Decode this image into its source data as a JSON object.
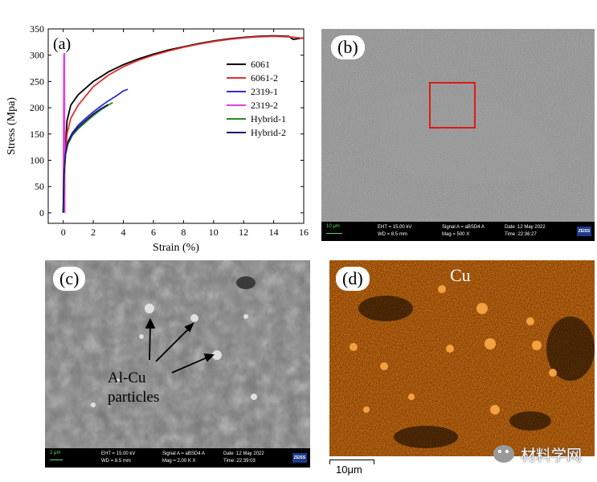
{
  "panel_a": {
    "label": "(a)",
    "chart_data": {
      "type": "line",
      "xlabel": "Strain (%)",
      "ylabel": "Stress (Mpa)",
      "xlim": [
        -1,
        16
      ],
      "ylim": [
        -20,
        350
      ],
      "xticks": [
        0,
        2,
        4,
        6,
        8,
        10,
        12,
        14,
        16
      ],
      "yticks": [
        0,
        50,
        100,
        150,
        200,
        250,
        300,
        350
      ],
      "legend_position": "top-right",
      "series": [
        {
          "name": "6061",
          "color": "#000000",
          "x": [
            0,
            0.1,
            0.25,
            0.5,
            1,
            2,
            3,
            4,
            5,
            6,
            7,
            8,
            9,
            10,
            11,
            12,
            13,
            14,
            15,
            15.3,
            16
          ],
          "y": [
            0,
            100,
            175,
            205,
            225,
            250,
            268,
            282,
            293,
            302,
            310,
            316,
            322,
            327,
            331,
            334,
            336,
            337,
            336,
            330,
            333
          ]
        },
        {
          "name": "6061-2",
          "color": "#e03030",
          "x": [
            0,
            0.1,
            0.25,
            0.5,
            1,
            2,
            3,
            4,
            5,
            6,
            7,
            8,
            9,
            10,
            11,
            12,
            13,
            14,
            15,
            16
          ],
          "y": [
            0,
            90,
            150,
            180,
            205,
            240,
            262,
            278,
            290,
            300,
            308,
            315,
            321,
            326,
            330,
            333,
            335,
            336,
            335,
            332
          ]
        },
        {
          "name": "2319-1",
          "color": "#3030d0",
          "x": [
            0,
            0.05,
            0.15,
            0.3,
            0.6,
            1,
            1.5,
            2,
            2.5,
            3,
            3.5,
            4,
            4.3
          ],
          "y": [
            0,
            70,
            115,
            135,
            152,
            167,
            180,
            192,
            203,
            213,
            222,
            232,
            235
          ]
        },
        {
          "name": "2319-2",
          "color": "#e040e0",
          "x": [
            0,
            0.04,
            0.08,
            0.1
          ],
          "y": [
            0,
            300,
            305,
            0
          ]
        },
        {
          "name": "Hybrid-1",
          "color": "#2a8a2a",
          "x": [
            0,
            0.05,
            0.15,
            0.3,
            0.6,
            1,
            1.5,
            2,
            2.5,
            3,
            3.3
          ],
          "y": [
            0,
            68,
            110,
            130,
            147,
            160,
            173,
            185,
            196,
            205,
            210
          ]
        },
        {
          "name": "Hybrid-2",
          "color": "#1a1a70",
          "x": [
            0,
            0.05,
            0.15,
            0.3,
            0.6,
            1,
            1.5,
            2,
            2.5,
            3
          ],
          "y": [
            0,
            72,
            113,
            133,
            150,
            163,
            176,
            188,
            198,
            206
          ]
        }
      ]
    }
  },
  "panel_b": {
    "label": "(b)",
    "scale_text": "10 μm",
    "databar": {
      "eht": "EHT = 15.00 kV",
      "wd": "WD = 8.5 mm",
      "signal": "Signal A = aBSD4 A",
      "mag": "Mag =  500 X",
      "date": "Date :12 May 2022",
      "time": "Time :22:36:27",
      "logo": "ZEISS"
    },
    "highlight_color": "#e01818"
  },
  "panel_c": {
    "label": "(c)",
    "annotation": [
      "Al-Cu",
      "particles"
    ],
    "scale_text": "2 μm",
    "databar": {
      "eht": "EHT = 15.00 kV",
      "wd": "WD =  8.5 mm",
      "signal": "Signal A = aBSD4 A",
      "mag": "Mag =   2.00 K X",
      "date": "Date :12 May 2022",
      "time": "Time :22:39:03",
      "logo": "ZEISS"
    }
  },
  "panel_d": {
    "label": "(d)",
    "element": "Cu",
    "scale_text": "10μm",
    "map_color": "#c86a10"
  },
  "watermark": "材料学网",
  "watermark_icon": "wechat-icon"
}
